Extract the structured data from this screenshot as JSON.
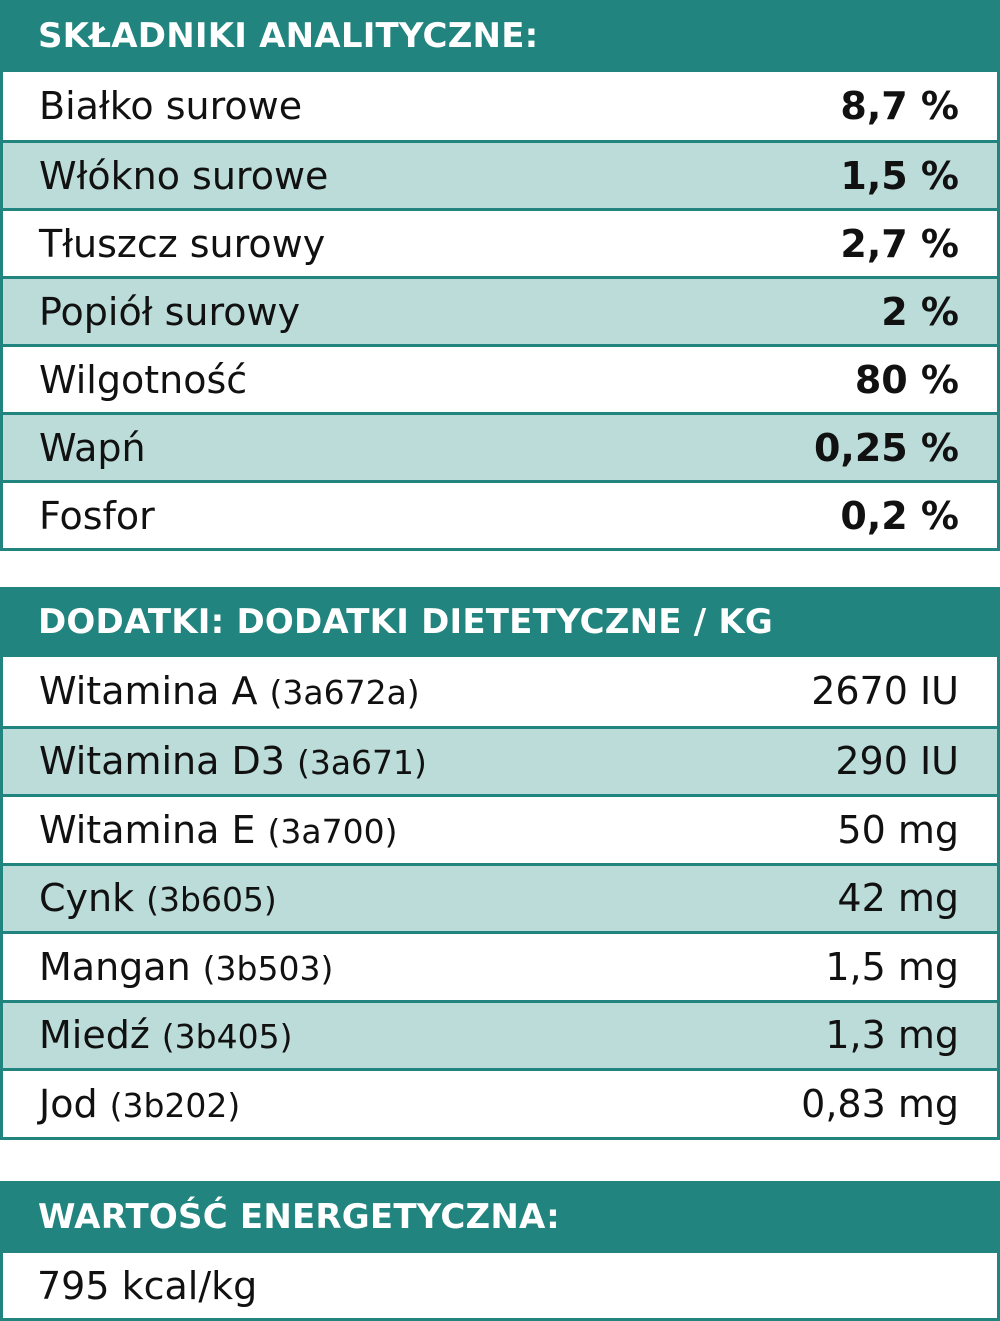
{
  "analytic": {
    "title": "SKŁADNIKI ANALITYCZNE:",
    "rows": [
      {
        "label": "Białko surowe",
        "value": "8,7 %"
      },
      {
        "label": "Włókno surowe",
        "value": "1,5 %"
      },
      {
        "label": "Tłuszcz surowy",
        "value": "2,7 %"
      },
      {
        "label": "Popiół surowy",
        "value": "2 %"
      },
      {
        "label": "Wilgotność",
        "value": "80 %"
      },
      {
        "label": "Wapń",
        "value": "0,25 %"
      },
      {
        "label": "Fosfor",
        "value": "0,2 %"
      }
    ]
  },
  "additives": {
    "title": "DODATKI: DODATKI DIETETYCZNE / KG",
    "rows": [
      {
        "label": "Witamina A",
        "code": "(3a672a)",
        "value": "2670 IU"
      },
      {
        "label": "Witamina D3",
        "code": "(3a671)",
        "value": "290 IU"
      },
      {
        "label": "Witamina E",
        "code": "(3a700)",
        "value": "50 mg"
      },
      {
        "label": "Cynk",
        "code": "(3b605)",
        "value": "42 mg"
      },
      {
        "label": "Mangan",
        "code": "(3b503)",
        "value": "1,5 mg"
      },
      {
        "label": "Miedź",
        "code": "(3b405)",
        "value": "1,3 mg"
      },
      {
        "label": "Jod",
        "code": "(3b202)",
        "value": "0,83 mg"
      }
    ]
  },
  "energy": {
    "title": "WARTOŚĆ ENERGETYCZNA:",
    "value": "795 kcal/kg"
  },
  "colors": {
    "header": "#21847e",
    "alt_row": "#bcdcd9"
  }
}
